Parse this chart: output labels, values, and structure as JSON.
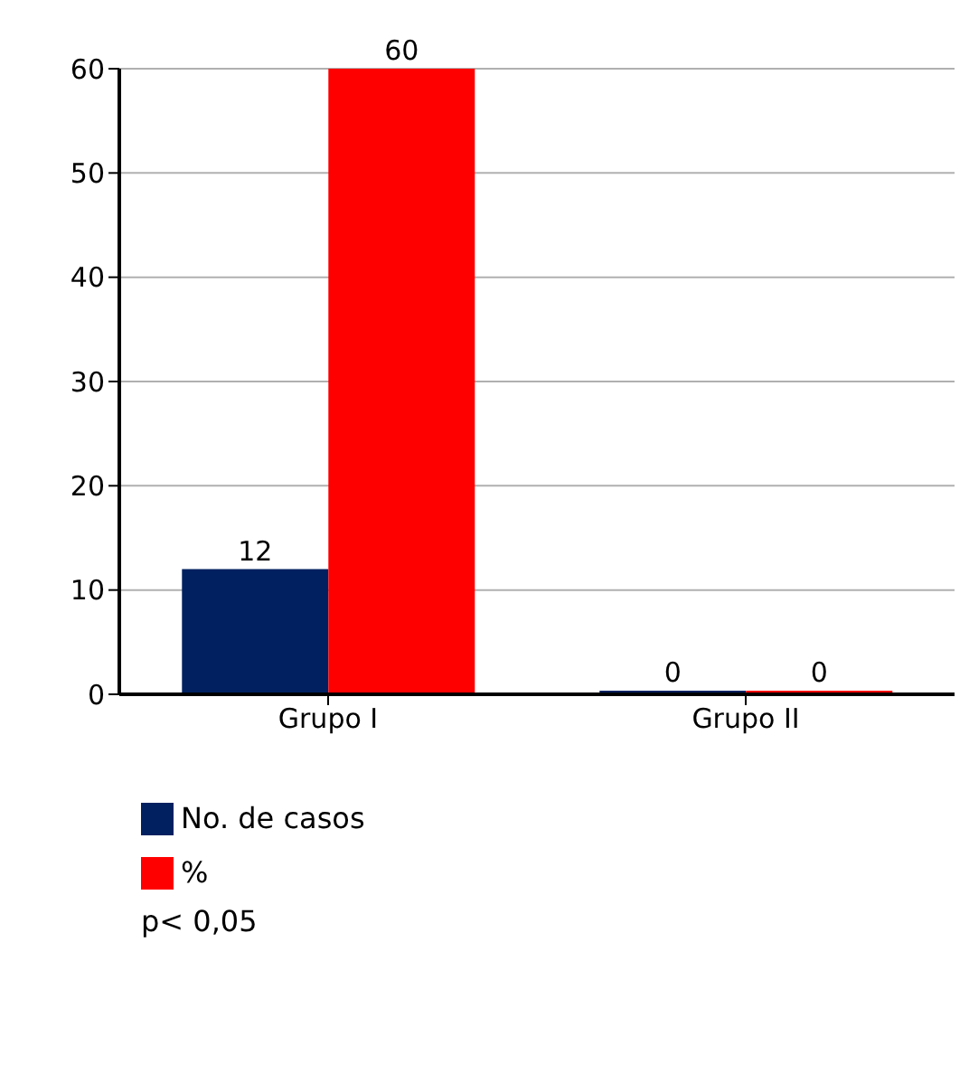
{
  "chart_data": {
    "type": "bar",
    "categories": [
      "Grupo I",
      "Grupo II"
    ],
    "series": [
      {
        "name": "No. de casos",
        "color": "#002060",
        "values": [
          12,
          0
        ]
      },
      {
        "name": "%",
        "color": "#ff0000",
        "values": [
          60,
          0
        ]
      }
    ],
    "ylim": [
      0,
      60
    ],
    "yticks": [
      0,
      10,
      20,
      30,
      40,
      50,
      60
    ],
    "grid": "y",
    "data_labels": true,
    "legend": "bottom",
    "annotations": [
      "p< 0,05"
    ]
  }
}
